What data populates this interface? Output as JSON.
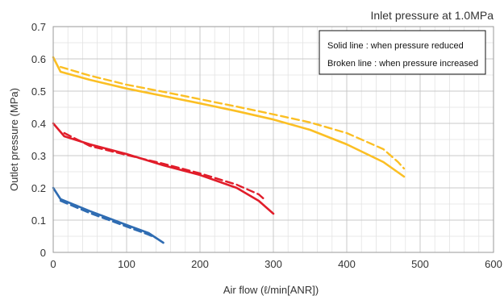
{
  "chart_data": {
    "type": "line",
    "title": "Inlet pressure at 1.0MPa",
    "xlabel": "Air flow (ℓ/min[ANR])",
    "ylabel": "Outlet pressure (MPa)",
    "xlim": [
      0,
      600
    ],
    "ylim": [
      0,
      0.7
    ],
    "x_ticks": [
      "0",
      "100",
      "200",
      "300",
      "400",
      "500",
      "600"
    ],
    "y_ticks": [
      "0",
      "0.1",
      "0.2",
      "0.3",
      "0.4",
      "0.5",
      "0.6",
      "0.7"
    ],
    "grid": true,
    "legend": {
      "position": "top-right",
      "lines": [
        "Solid line : when pressure reduced",
        "Broken line : when pressure increased"
      ]
    },
    "series": [
      {
        "color": "#fbbf24",
        "style": "solid",
        "x": [
          0,
          10,
          50,
          100,
          150,
          200,
          250,
          300,
          350,
          400,
          450,
          478
        ],
        "y": [
          0.605,
          0.56,
          0.535,
          0.508,
          0.485,
          0.462,
          0.438,
          0.412,
          0.38,
          0.335,
          0.28,
          0.235
        ]
      },
      {
        "color": "#fbbf24",
        "style": "dashed",
        "x": [
          10,
          50,
          100,
          150,
          200,
          250,
          300,
          350,
          400,
          450,
          470,
          478
        ],
        "y": [
          0.575,
          0.548,
          0.52,
          0.498,
          0.475,
          0.452,
          0.428,
          0.403,
          0.37,
          0.32,
          0.28,
          0.26
        ]
      },
      {
        "color": "#e11d2a",
        "style": "solid",
        "x": [
          0,
          15,
          50,
          100,
          150,
          200,
          250,
          280,
          300
        ],
        "y": [
          0.4,
          0.36,
          0.335,
          0.305,
          0.27,
          0.24,
          0.2,
          0.16,
          0.12
        ]
      },
      {
        "color": "#e11d2a",
        "style": "dashed",
        "x": [
          15,
          50,
          100,
          150,
          200,
          250,
          280,
          290
        ],
        "y": [
          0.37,
          0.33,
          0.302,
          0.275,
          0.245,
          0.21,
          0.18,
          0.16
        ]
      },
      {
        "color": "#2f6cb2",
        "style": "solid",
        "x": [
          0,
          10,
          50,
          100,
          130,
          150
        ],
        "y": [
          0.2,
          0.165,
          0.128,
          0.085,
          0.06,
          0.03
        ]
      },
      {
        "color": "#2f6cb2",
        "style": "dashed",
        "x": [
          10,
          50,
          100,
          130,
          140
        ],
        "y": [
          0.16,
          0.122,
          0.08,
          0.055,
          0.045
        ]
      }
    ]
  }
}
